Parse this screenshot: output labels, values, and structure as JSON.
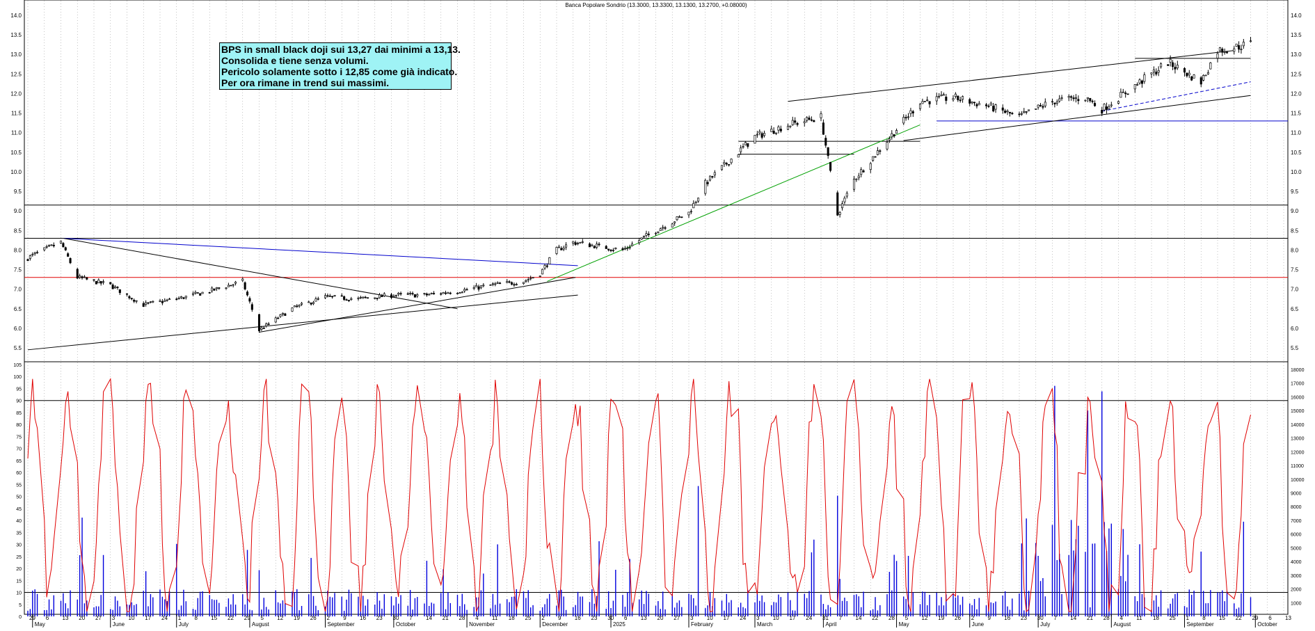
{
  "chart_data": [
    {
      "type": "candlestick",
      "title": "Banca Popolare Sondrio (13.3000, 13.3300, 13.1300, 13.2700, +0.08000)",
      "ylim": [
        5.2,
        14.2
      ],
      "y_ticks": [
        "14.0",
        "13.5",
        "13.0",
        "12.5",
        "12.0",
        "11.5",
        "11.0",
        "10.5",
        "10.0",
        "9.5",
        "9.0",
        "8.5",
        "8.0",
        "7.5",
        "7.0",
        "6.5",
        "6.0",
        "5.5"
      ],
      "grid": "vertical dotted",
      "annotation": [
        "BPS in small black doji sui 13,27 dai minimi a 13,13.",
        "Consolida e tiene senza volumi.",
        "Pericolo solamente sotto i 12,85 come già indicato.",
        "Per ora rimane in trend sui massimi."
      ],
      "horizontal_levels": [
        {
          "value": 9.15,
          "color": "#000000"
        },
        {
          "value": 8.3,
          "color": "#000000"
        },
        {
          "value": 7.3,
          "color": "#e00000"
        },
        {
          "value": 11.3,
          "color": "#0000cc"
        }
      ],
      "trendlines": [
        {
          "from": [
            "2024-05-14",
            8.3
          ],
          "to": [
            "2024-12-18",
            7.6
          ],
          "color": "#0000cc"
        },
        {
          "from": [
            "2024-05-14",
            8.3
          ],
          "to": [
            "2024-10-28",
            6.5
          ],
          "color": "#000000"
        },
        {
          "from": [
            "2024-04-29",
            5.45
          ],
          "to": [
            "2024-12-18",
            6.85
          ],
          "color": "#000000"
        },
        {
          "from": [
            "2024-08-05",
            5.9
          ],
          "to": [
            "2024-12-17",
            7.3
          ],
          "color": "#000000"
        },
        {
          "from": [
            "2024-12-05",
            7.2
          ],
          "to": [
            "2025-05-12",
            11.2
          ],
          "color": "#00a000"
        },
        {
          "from": [
            "2025-03-17",
            11.8
          ],
          "to": [
            "2025-09-22",
            13.1
          ],
          "color": "#000000"
        },
        {
          "from": [
            "2025-05-05",
            10.8
          ],
          "to": [
            "2025-09-29",
            11.95
          ],
          "color": "#000000"
        },
        {
          "from": [
            "2025-07-28",
            11.55
          ],
          "to": [
            "2025-09-29",
            12.3
          ],
          "color": "#0000cc",
          "style": "dashed"
        }
      ],
      "price_points": [
        {
          "date": "2024-04-29",
          "close": 7.8
        },
        {
          "date": "2024-05-13",
          "close": 8.2
        },
        {
          "date": "2024-05-20",
          "close": 7.3
        },
        {
          "date": "2024-06-03",
          "close": 7.1
        },
        {
          "date": "2024-06-17",
          "close": 6.6
        },
        {
          "date": "2024-07-01",
          "close": 6.75
        },
        {
          "date": "2024-07-15",
          "close": 6.95
        },
        {
          "date": "2024-07-29",
          "close": 7.2
        },
        {
          "date": "2024-08-05",
          "close": 5.95
        },
        {
          "date": "2024-08-19",
          "close": 6.5
        },
        {
          "date": "2024-09-02",
          "close": 6.8
        },
        {
          "date": "2024-09-16",
          "close": 6.75
        },
        {
          "date": "2024-10-01",
          "close": 6.85
        },
        {
          "date": "2024-10-14",
          "close": 6.85
        },
        {
          "date": "2024-10-28",
          "close": 6.95
        },
        {
          "date": "2024-11-11",
          "close": 7.1
        },
        {
          "date": "2024-11-25",
          "close": 7.2
        },
        {
          "date": "2024-12-02",
          "close": 7.4
        },
        {
          "date": "2024-12-09",
          "close": 8.0
        },
        {
          "date": "2024-12-16",
          "close": 8.2
        },
        {
          "date": "2025-01-06",
          "close": 8.0
        },
        {
          "date": "2025-01-20",
          "close": 8.5
        },
        {
          "date": "2025-02-03",
          "close": 8.95
        },
        {
          "date": "2025-02-10",
          "close": 9.7
        },
        {
          "date": "2025-02-24",
          "close": 10.5
        },
        {
          "date": "2025-03-03",
          "close": 10.9
        },
        {
          "date": "2025-03-17",
          "close": 11.2
        },
        {
          "date": "2025-03-31",
          "close": 11.4
        },
        {
          "date": "2025-04-07",
          "close": 8.9
        },
        {
          "date": "2025-04-14",
          "close": 9.8
        },
        {
          "date": "2025-04-28",
          "close": 10.8
        },
        {
          "date": "2025-05-12",
          "close": 11.8
        },
        {
          "date": "2025-05-26",
          "close": 11.9
        },
        {
          "date": "2025-06-09",
          "close": 11.7
        },
        {
          "date": "2025-06-23",
          "close": 11.4
        },
        {
          "date": "2025-07-07",
          "close": 11.8
        },
        {
          "date": "2025-07-21",
          "close": 11.9
        },
        {
          "date": "2025-07-28",
          "close": 11.6
        },
        {
          "date": "2025-08-11",
          "close": 12.2
        },
        {
          "date": "2025-08-25",
          "close": 12.8
        },
        {
          "date": "2025-09-08",
          "close": 12.3
        },
        {
          "date": "2025-09-15",
          "close": 13.1
        },
        {
          "date": "2025-09-29",
          "close": 13.27
        }
      ]
    },
    {
      "type": "line+bar",
      "description": "",
      "ylim_left": [
        0,
        105
      ],
      "y_ticks_left": [
        "105",
        "100",
        "95",
        "90",
        "85",
        "80",
        "75",
        "70",
        "65",
        "60",
        "55",
        "50",
        "45",
        "40",
        "35",
        "30",
        "25",
        "20",
        "15",
        "10",
        "5",
        "0"
      ],
      "ylim_right": [
        0,
        18000
      ],
      "y_ticks_right": [
        "18000",
        "17000",
        "16000",
        "15000",
        "14000",
        "13000",
        "12000",
        "11000",
        "10000",
        "9000",
        "8000",
        "7000",
        "6000",
        "5000",
        "4000",
        "3000",
        "2000",
        "1000"
      ],
      "horizontal_levels": [
        90,
        10
      ],
      "series": [
        {
          "color": "#e00000",
          "type": "line"
        },
        {
          "color": "#0000dd",
          "type": "bar"
        }
      ]
    }
  ],
  "x_axis": {
    "month_labels": [
      {
        "label": "May",
        "date": "2024-05-01"
      },
      {
        "label": "June",
        "date": "2024-06-03"
      },
      {
        "label": "July",
        "date": "2024-07-01"
      },
      {
        "label": "August",
        "date": "2024-08-01"
      },
      {
        "label": "September",
        "date": "2024-09-02"
      },
      {
        "label": "October",
        "date": "2024-10-01"
      },
      {
        "label": "November",
        "date": "2024-11-01"
      },
      {
        "label": "December",
        "date": "2024-12-02"
      },
      {
        "label": "2025",
        "date": "2025-01-01"
      },
      {
        "label": "February",
        "date": "2025-02-03"
      },
      {
        "label": "March",
        "date": "2025-03-03"
      },
      {
        "label": "April",
        "date": "2025-04-01"
      },
      {
        "label": "May",
        "date": "2025-05-02"
      },
      {
        "label": "June",
        "date": "2025-06-02"
      },
      {
        "label": "July",
        "date": "2025-07-01"
      },
      {
        "label": "August",
        "date": "2025-08-01"
      },
      {
        "label": "September",
        "date": "2025-09-01"
      },
      {
        "label": "October",
        "date": "2025-10-01"
      }
    ],
    "day_labels": [
      "29",
      "6",
      "13",
      "20",
      "27",
      "3",
      "10",
      "17",
      "24",
      "1",
      "8",
      "15",
      "22",
      "29",
      "5",
      "12",
      "19",
      "26",
      "2",
      "9",
      "16",
      "23",
      "30",
      "7",
      "14",
      "21",
      "28",
      "4",
      "11",
      "18",
      "25",
      "2",
      "9",
      "16",
      "23",
      "30",
      "6",
      "13",
      "20",
      "27",
      "3",
      "10",
      "17",
      "24",
      "3",
      "10",
      "17",
      "24",
      "31",
      "7",
      "14",
      "22",
      "28",
      "5",
      "12",
      "19",
      "26",
      "2",
      "9",
      "16",
      "23",
      "30",
      "7",
      "14",
      "21",
      "28",
      "4",
      "11",
      "18",
      "25",
      "1",
      "8",
      "15",
      "22",
      "29",
      "6",
      "13"
    ]
  }
}
